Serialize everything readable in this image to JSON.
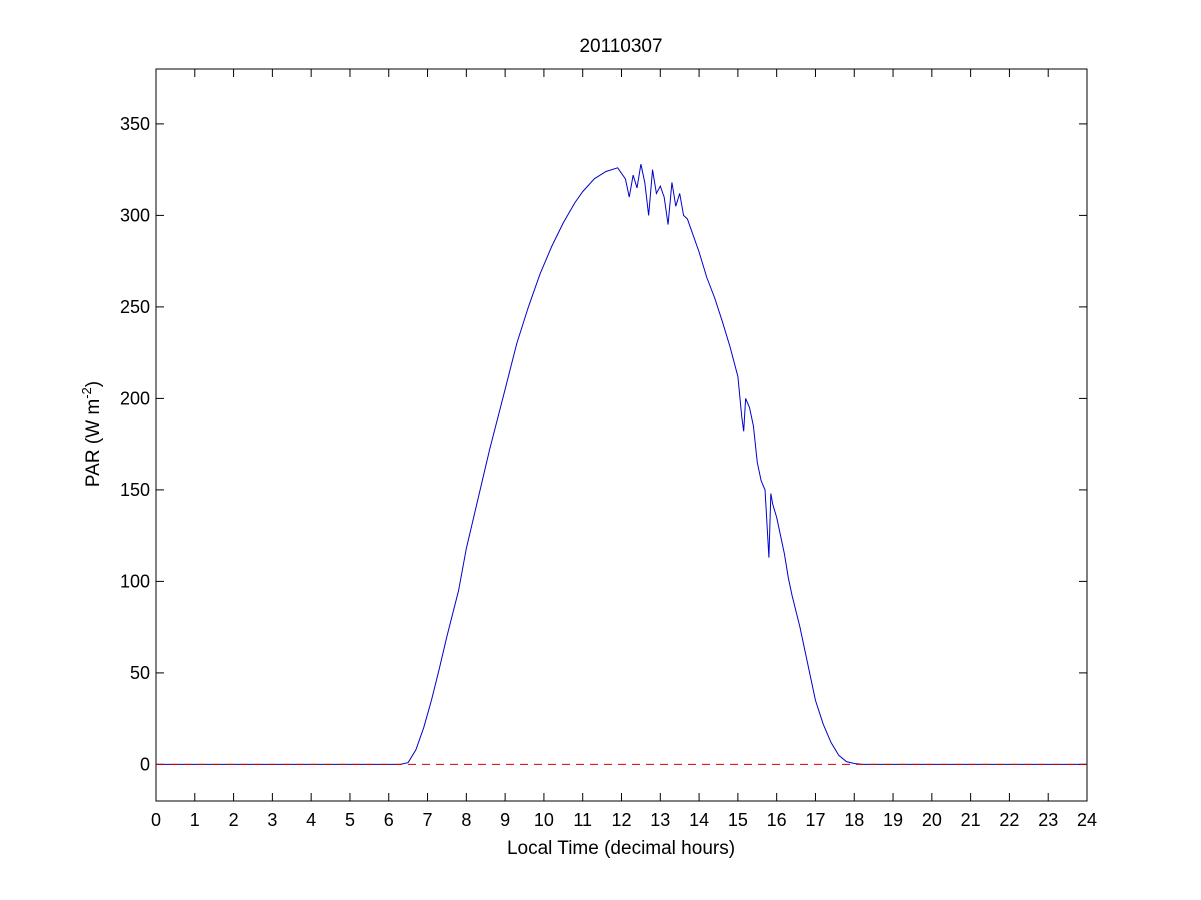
{
  "chart_data": {
    "type": "line",
    "title": "20110307",
    "xlabel": "Local Time (decimal hours)",
    "ylabel": {
      "main": "PAR (W m",
      "superscript": "-2",
      "close": ")"
    },
    "xlim": [
      0,
      24
    ],
    "ylim": [
      -20,
      380
    ],
    "xticks": [
      "0",
      "1",
      "2",
      "3",
      "4",
      "5",
      "6",
      "7",
      "8",
      "9",
      "10",
      "11",
      "12",
      "13",
      "14",
      "15",
      "16",
      "17",
      "18",
      "19",
      "20",
      "21",
      "22",
      "23",
      "24"
    ],
    "yticks": [
      "0",
      "50",
      "100",
      "150",
      "200",
      "250",
      "300",
      "350"
    ],
    "grid": false,
    "series": [
      {
        "style": "solid",
        "color": "#0000cc",
        "x": [
          0,
          6.3,
          6.5,
          6.7,
          6.9,
          7.1,
          7.3,
          7.5,
          7.8,
          8.0,
          8.3,
          8.6,
          9.0,
          9.3,
          9.6,
          9.9,
          10.2,
          10.5,
          10.8,
          11.0,
          11.3,
          11.6,
          11.9,
          12.1,
          12.2,
          12.3,
          12.4,
          12.5,
          12.6,
          12.7,
          12.8,
          12.9,
          13.0,
          13.1,
          13.2,
          13.3,
          13.4,
          13.5,
          13.6,
          13.7,
          13.8,
          14.0,
          14.2,
          14.4,
          14.6,
          14.8,
          15.0,
          15.1,
          15.15,
          15.2,
          15.3,
          15.4,
          15.5,
          15.6,
          15.7,
          15.8,
          15.85,
          15.9,
          16.0,
          16.1,
          16.2,
          16.3,
          16.4,
          16.6,
          16.8,
          17.0,
          17.2,
          17.4,
          17.6,
          17.8,
          18.0,
          18.2,
          18.4,
          18.6,
          24
        ],
        "y": [
          0,
          0,
          1,
          8,
          20,
          35,
          52,
          70,
          95,
          118,
          145,
          172,
          205,
          230,
          250,
          268,
          283,
          296,
          307,
          313,
          320,
          324,
          326,
          320,
          310,
          322,
          315,
          328,
          318,
          300,
          325,
          312,
          316,
          310,
          295,
          318,
          305,
          312,
          300,
          298,
          292,
          280,
          266,
          255,
          242,
          228,
          212,
          190,
          182,
          200,
          195,
          185,
          165,
          155,
          150,
          113,
          148,
          142,
          135,
          125,
          115,
          102,
          92,
          75,
          55,
          35,
          22,
          12,
          5,
          1.5,
          0.5,
          0,
          0,
          0,
          0
        ]
      },
      {
        "style": "dashed",
        "color": "#cc0000",
        "x": [
          0,
          24
        ],
        "y": [
          0,
          0
        ]
      }
    ]
  }
}
